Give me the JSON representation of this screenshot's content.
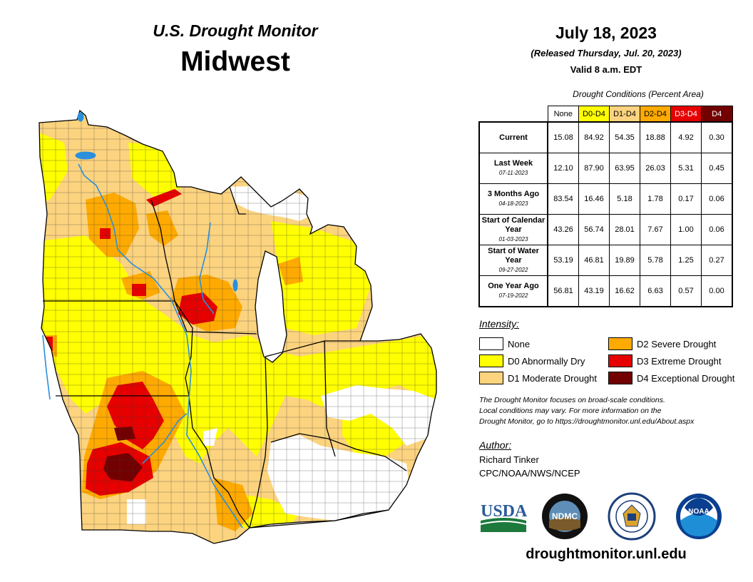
{
  "header": {
    "subtitle": "U.S. Drought Monitor",
    "region": "Midwest",
    "date": "July 18, 2023",
    "released": "(Released Thursday, Jul. 20, 2023)",
    "valid": "Valid 8 a.m. EDT"
  },
  "conditions": {
    "title": "Drought Conditions (Percent Area)",
    "columns": [
      {
        "label": "None",
        "color": "#ffffff",
        "text_color": "#000000"
      },
      {
        "label": "D0-D4",
        "color": "#ffff00",
        "text_color": "#000000"
      },
      {
        "label": "D1-D4",
        "color": "#fcd37f",
        "text_color": "#000000"
      },
      {
        "label": "D2-D4",
        "color": "#ffaa00",
        "text_color": "#000000"
      },
      {
        "label": "D3-D4",
        "color": "#e60000",
        "text_color": "#ffffff"
      },
      {
        "label": "D4",
        "color": "#730000",
        "text_color": "#ffffff"
      }
    ],
    "rows": [
      {
        "label": "Current",
        "date": "",
        "values": [
          "15.08",
          "84.92",
          "54.35",
          "18.88",
          "4.92",
          "0.30"
        ]
      },
      {
        "label": "Last Week",
        "date": "07-11-2023",
        "values": [
          "12.10",
          "87.90",
          "63.95",
          "26.03",
          "5.31",
          "0.45"
        ]
      },
      {
        "label": "3 Months Ago",
        "date": "04-18-2023",
        "values": [
          "83.54",
          "16.46",
          "5.18",
          "1.78",
          "0.17",
          "0.06"
        ]
      },
      {
        "label": "Start of Calendar Year",
        "date": "01-03-2023",
        "values": [
          "43.26",
          "56.74",
          "28.01",
          "7.67",
          "1.00",
          "0.06"
        ]
      },
      {
        "label": "Start of Water Year",
        "date": "09-27-2022",
        "values": [
          "53.19",
          "46.81",
          "19.89",
          "5.78",
          "1.25",
          "0.27"
        ]
      },
      {
        "label": "One Year Ago",
        "date": "07-19-2022",
        "values": [
          "56.81",
          "43.19",
          "16.62",
          "6.63",
          "0.57",
          "0.00"
        ]
      }
    ]
  },
  "legend": {
    "title": "Intensity:",
    "items": [
      {
        "label": "None",
        "color": "#ffffff"
      },
      {
        "label": "D0 Abnormally Dry",
        "color": "#ffff00"
      },
      {
        "label": "D1 Moderate Drought",
        "color": "#fcd37f"
      },
      {
        "label": "D2 Severe Drought",
        "color": "#ffaa00"
      },
      {
        "label": "D3 Extreme Drought",
        "color": "#e60000"
      },
      {
        "label": "D4 Exceptional Drought",
        "color": "#730000"
      }
    ]
  },
  "note": {
    "line1": "The Drought Monitor focuses on broad-scale conditions.",
    "line2": "Local conditions may vary. For more information on the",
    "line3": "Drought Monitor, go to https://droughtmonitor.unl.edu/About.aspx"
  },
  "author": {
    "title": "Author:",
    "name": "Richard Tinker",
    "org": "CPC/NOAA/NWS/NCEP"
  },
  "logos": {
    "usda": "USDA",
    "ndmc": "NDMC",
    "noaa": "NOAA"
  },
  "footer": {
    "site": "droughtmonitor.unl.edu"
  }
}
